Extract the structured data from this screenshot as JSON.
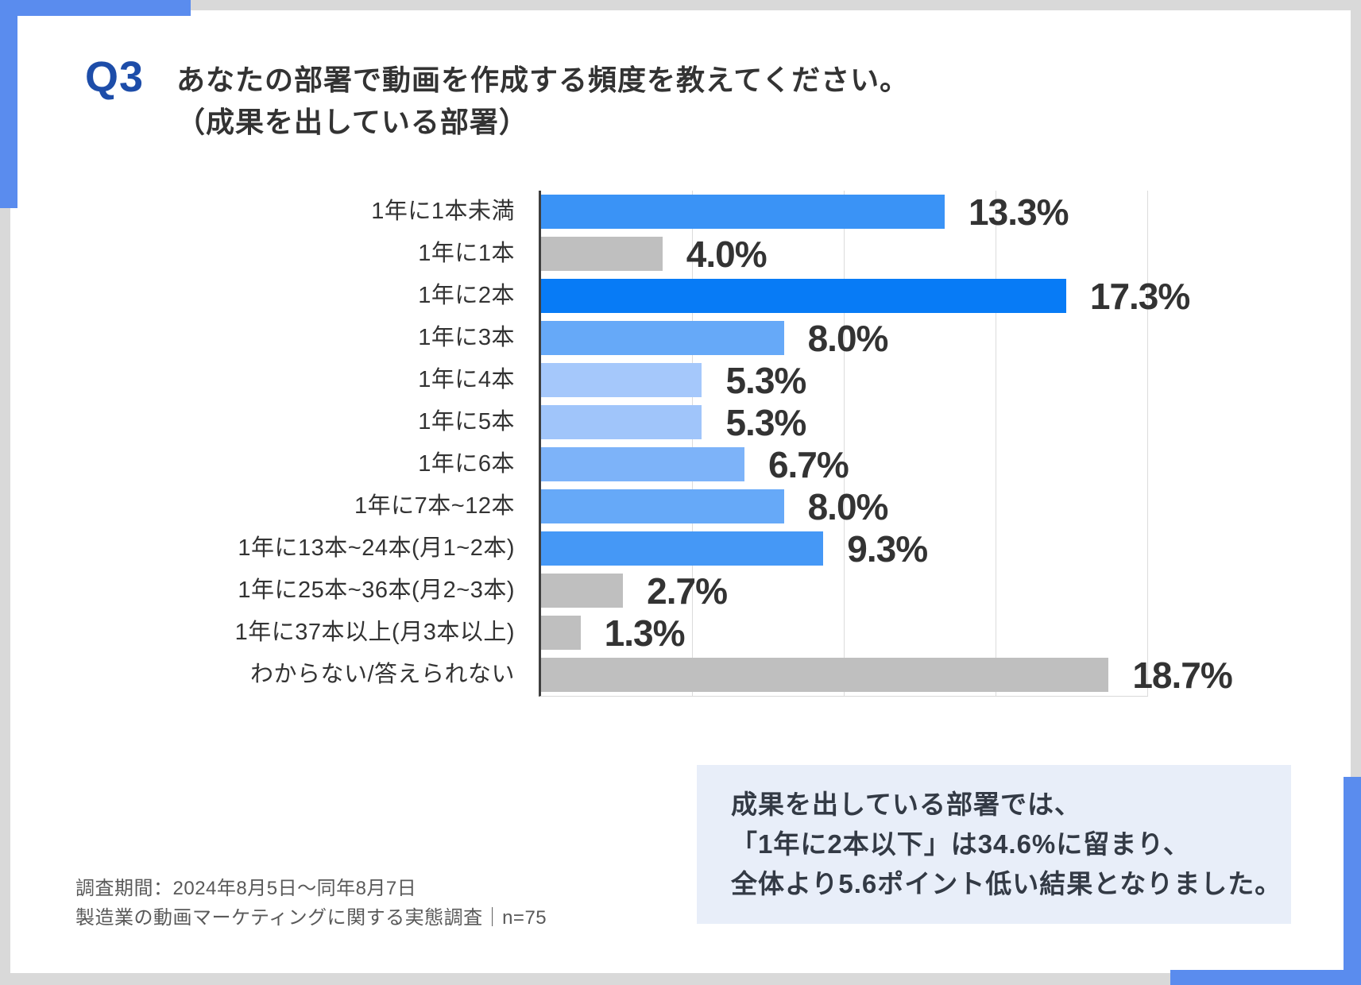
{
  "page": {
    "question_label": "Q3",
    "title_line1": "あなたの部署で動画を作成する頻度を教えてください。",
    "title_line2": "（成果を出している部署）"
  },
  "chart_data": {
    "type": "bar",
    "orientation": "horizontal",
    "title": "",
    "xlabel": "",
    "ylabel": "",
    "xlim": [
      0,
      20
    ],
    "grid": true,
    "gridlines_percent": [
      5,
      10,
      15,
      20
    ],
    "legend": false,
    "categories": [
      "1年に1本未満",
      "1年に1本",
      "1年に2本",
      "1年に3本",
      "1年に4本",
      "1年に5本",
      "1年に6本",
      "1年に7本~12本",
      "1年に13本~24本(月1~2本)",
      "1年に25本~36本(月2~3本)",
      "1年に37本以上(月3本以上)",
      "わからない/答えられない"
    ],
    "values": [
      13.3,
      4.0,
      17.3,
      8.0,
      5.3,
      5.3,
      6.7,
      8.0,
      9.3,
      2.7,
      1.3,
      18.7
    ],
    "value_labels": [
      "13.3%",
      "4.0%",
      "17.3%",
      "8.0%",
      "5.3%",
      "5.3%",
      "6.7%",
      "8.0%",
      "9.3%",
      "2.7%",
      "1.3%",
      "18.7%"
    ],
    "bar_colors": [
      "#3a93f6",
      "#bfbfbf",
      "#077bf6",
      "#66a9f8",
      "#a5c8fb",
      "#a0c5fa",
      "#7db3f9",
      "#66a9f8",
      "#4598f6",
      "#bfbfbf",
      "#bfbfbf",
      "#bfbfbf"
    ]
  },
  "note_box": {
    "bg_color": "#e8eef9",
    "lines": [
      "成果を出している部署では、",
      "「1年に2本以下」は34.6%に留まり、",
      "全体より5.6ポイント低い結果となりました。"
    ]
  },
  "footer": {
    "line1": "調査期間：2024年8月5日～同年8月7日",
    "line2": "製造業の動画マーケティングに関する実態調査｜n=75"
  },
  "colors": {
    "page_background": "#d9d9d9",
    "card_background": "#ffffff",
    "corner_accent": "#5a8cee",
    "question_label": "#1d4da9",
    "text_dark": "#333333",
    "footer_text": "#595959",
    "gridline": "#dcdcdc",
    "axis_line": "#3f3f3f"
  }
}
